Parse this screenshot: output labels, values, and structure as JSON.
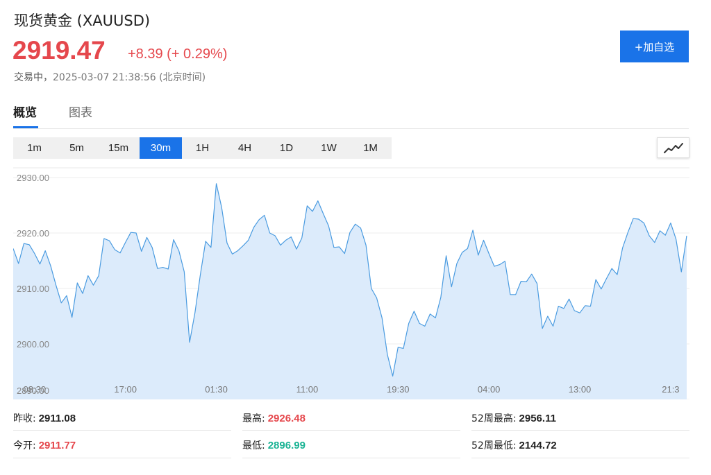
{
  "header": {
    "title": "现货黄金 (XAUUSD)",
    "price": "2919.47",
    "change": "+8.39 (+ 0.29%)",
    "status_label": "交易中，",
    "timestamp": "2025-03-07 21:38:56 (北京时间)",
    "add_button": "+加自选"
  },
  "tabs": [
    {
      "label": "概览",
      "active": true
    },
    {
      "label": "图表",
      "active": false
    }
  ],
  "intervals": [
    {
      "label": "1m",
      "active": false
    },
    {
      "label": "5m",
      "active": false
    },
    {
      "label": "15m",
      "active": false
    },
    {
      "label": "30m",
      "active": true
    },
    {
      "label": "1H",
      "active": false
    },
    {
      "label": "4H",
      "active": false
    },
    {
      "label": "1D",
      "active": false
    },
    {
      "label": "1W",
      "active": false
    },
    {
      "label": "1M",
      "active": false
    }
  ],
  "chart_type_icon": "line-chart-icon",
  "colors": {
    "accent": "#1a73e8",
    "up": "#e5474c",
    "down": "#1ab394",
    "line": "#4a9be0",
    "fill": "#dcebfb"
  },
  "chart_data": {
    "type": "area",
    "ylim": [
      2890,
      2930
    ],
    "y_ticks": [
      "2930.00",
      "2920.00",
      "2910.00",
      "2900.00",
      "2890.00"
    ],
    "y_tick_values": [
      2930,
      2920,
      2910,
      2900,
      2890
    ],
    "x_ticks": [
      "08:30",
      "17:00",
      "01:30",
      "11:00",
      "19:30",
      "04:00",
      "13:00",
      "21:3"
    ],
    "x_tick_index": [
      4,
      21,
      38,
      55,
      72,
      89,
      106,
      123
    ],
    "grid": true,
    "values": [
      2917.2,
      2914.5,
      2918.1,
      2917.9,
      2916.3,
      2914.4,
      2916.8,
      2914.1,
      2910.6,
      2907.4,
      2908.7,
      2904.8,
      2911.0,
      2909.1,
      2912.3,
      2910.6,
      2912.3,
      2919.0,
      2918.6,
      2917.0,
      2916.4,
      2918.3,
      2920.1,
      2920.0,
      2916.7,
      2919.2,
      2917.4,
      2913.6,
      2913.8,
      2913.5,
      2918.8,
      2916.8,
      2913.0,
      2900.3,
      2905.6,
      2912.4,
      2918.5,
      2917.4,
      2928.9,
      2924.6,
      2918.2,
      2916.2,
      2916.8,
      2917.7,
      2918.7,
      2921.0,
      2922.4,
      2923.2,
      2920.0,
      2919.5,
      2917.8,
      2918.7,
      2919.3,
      2917.1,
      2919.1,
      2924.9,
      2923.9,
      2925.8,
      2923.5,
      2921.3,
      2917.4,
      2917.5,
      2916.3,
      2920.1,
      2921.6,
      2920.9,
      2917.8,
      2910.0,
      2908.3,
      2904.7,
      2898.1,
      2894.2,
      2899.4,
      2899.2,
      2903.7,
      2905.9,
      2903.7,
      2903.2,
      2905.4,
      2904.7,
      2908.4,
      2915.9,
      2910.3,
      2914.5,
      2916.5,
      2917.2,
      2920.5,
      2916.0,
      2918.7,
      2916.3,
      2914.0,
      2914.3,
      2914.9,
      2908.9,
      2908.9,
      2911.3,
      2911.2,
      2912.6,
      2910.9,
      2902.8,
      2905.0,
      2903.2,
      2906.8,
      2906.4,
      2908.1,
      2906.0,
      2905.6,
      2906.9,
      2906.8,
      2911.6,
      2909.9,
      2911.8,
      2913.6,
      2912.5,
      2917.3,
      2920.1,
      2922.6,
      2922.5,
      2921.8,
      2919.5,
      2918.3,
      2920.4,
      2919.6,
      2921.8,
      2918.9,
      2913.0,
      2919.5
    ]
  },
  "stats": {
    "prev_close_label": "昨收:",
    "prev_close": "2911.08",
    "open_label": "今开:",
    "open": "2911.77",
    "high_label": "最高:",
    "high": "2926.48",
    "low_label": "最低:",
    "low": "2896.99",
    "high52_label": "52周最高:",
    "high52": "2956.11",
    "low52_label": "52周最低:",
    "low52": "2144.72"
  }
}
